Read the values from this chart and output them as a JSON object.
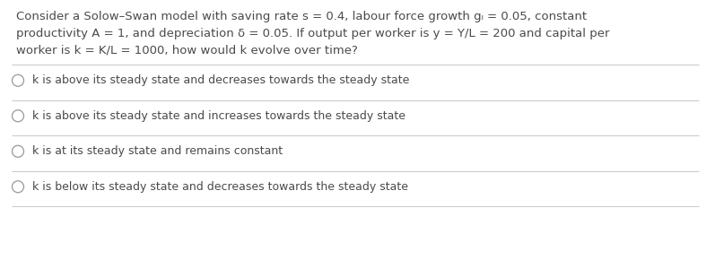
{
  "background_color": "#ffffff",
  "question_lines": [
    "Consider a Solow–Swan model with saving rate s = 0.4, labour force growth gₗ = 0.05, constant",
    "productivity A = 1, and depreciation δ = 0.05. If output per worker is y = Y/L = 200 and capital per",
    "worker is k = K/L = 1000, how would k evolve over time?"
  ],
  "options": [
    "k is above its steady state and decreases towards the steady state",
    "k is above its steady state and increases towards the steady state",
    "k is at its steady state and remains constant",
    "k is below its steady state and decreases towards the steady state"
  ],
  "text_color": "#4a4a4a",
  "divider_color": "#c8c8c8",
  "circle_edgecolor": "#999999",
  "question_fontsize": 9.5,
  "option_fontsize": 9.0,
  "fig_width": 7.87,
  "fig_height": 2.9,
  "dpi": 100
}
